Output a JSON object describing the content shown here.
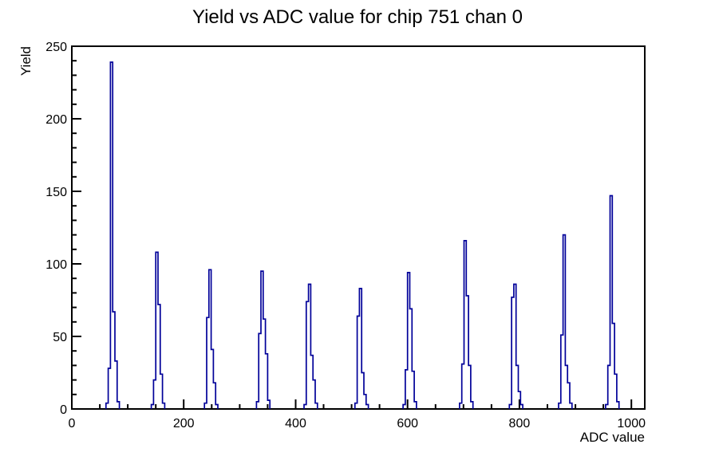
{
  "colors": {
    "background": "#ffffff",
    "axis": "#000000",
    "text": "#000000",
    "histogram_line": "#000099"
  },
  "chart_data": {
    "type": "bar",
    "subtype": "histogram-spikes",
    "title": "Yield vs ADC value for chip 751 chan 0",
    "xlabel": "ADC value",
    "ylabel": "Yield",
    "xlim": [
      0,
      1024
    ],
    "ylim": [
      0,
      250
    ],
    "grid": false,
    "legend": false,
    "x_major_step": 200,
    "x_minor_step": 50,
    "y_major_step": 50,
    "y_minor_step": 10,
    "x_tick_values": [
      0,
      200,
      400,
      600,
      800,
      1000
    ],
    "x_tick_labels": [
      "0",
      "200",
      "400",
      "600",
      "800",
      "1000"
    ],
    "y_tick_values": [
      0,
      50,
      100,
      150,
      200,
      250
    ],
    "y_tick_labels": [
      "0",
      "50",
      "100",
      "150",
      "200",
      "250"
    ],
    "bin_width": 4,
    "line_color": "#000099",
    "peak_centers_adc": [
      71,
      152,
      247,
      340,
      425,
      516,
      602,
      703,
      792,
      880,
      964
    ],
    "peak_heights": [
      239,
      108,
      96,
      95,
      86,
      83,
      94,
      116,
      86,
      120,
      147
    ],
    "peaks": [
      {
        "center": 71,
        "peak_height": 239,
        "bins": [
          [
            63,
            4
          ],
          [
            67,
            28
          ],
          [
            71,
            239
          ],
          [
            75,
            67
          ],
          [
            79,
            33
          ],
          [
            83,
            5
          ]
        ]
      },
      {
        "center": 152,
        "peak_height": 108,
        "bins": [
          [
            144,
            3
          ],
          [
            148,
            20
          ],
          [
            152,
            108
          ],
          [
            156,
            72
          ],
          [
            160,
            24
          ],
          [
            164,
            4
          ]
        ]
      },
      {
        "center": 247,
        "peak_height": 96,
        "bins": [
          [
            239,
            4
          ],
          [
            243,
            63
          ],
          [
            247,
            96
          ],
          [
            251,
            41
          ],
          [
            255,
            18
          ],
          [
            259,
            3
          ]
        ]
      },
      {
        "center": 340,
        "peak_height": 95,
        "bins": [
          [
            332,
            5
          ],
          [
            336,
            52
          ],
          [
            340,
            95
          ],
          [
            344,
            62
          ],
          [
            348,
            38
          ],
          [
            352,
            6
          ]
        ]
      },
      {
        "center": 425,
        "peak_height": 86,
        "bins": [
          [
            417,
            3
          ],
          [
            421,
            74
          ],
          [
            425,
            86
          ],
          [
            429,
            37
          ],
          [
            433,
            20
          ],
          [
            437,
            4
          ]
        ]
      },
      {
        "center": 516,
        "peak_height": 83,
        "bins": [
          [
            508,
            4
          ],
          [
            512,
            64
          ],
          [
            516,
            83
          ],
          [
            520,
            25
          ],
          [
            524,
            10
          ],
          [
            528,
            3
          ]
        ]
      },
      {
        "center": 602,
        "peak_height": 94,
        "bins": [
          [
            594,
            3
          ],
          [
            598,
            27
          ],
          [
            602,
            94
          ],
          [
            606,
            69
          ],
          [
            610,
            26
          ],
          [
            614,
            5
          ]
        ]
      },
      {
        "center": 703,
        "peak_height": 116,
        "bins": [
          [
            695,
            4
          ],
          [
            699,
            31
          ],
          [
            703,
            116
          ],
          [
            707,
            78
          ],
          [
            711,
            30
          ],
          [
            715,
            5
          ]
        ]
      },
      {
        "center": 792,
        "peak_height": 86,
        "bins": [
          [
            784,
            3
          ],
          [
            788,
            77
          ],
          [
            792,
            86
          ],
          [
            796,
            30
          ],
          [
            800,
            12
          ],
          [
            804,
            3
          ]
        ]
      },
      {
        "center": 880,
        "peak_height": 120,
        "bins": [
          [
            872,
            4
          ],
          [
            876,
            51
          ],
          [
            880,
            120
          ],
          [
            884,
            30
          ],
          [
            888,
            18
          ],
          [
            892,
            4
          ]
        ]
      },
      {
        "center": 964,
        "peak_height": 147,
        "bins": [
          [
            956,
            3
          ],
          [
            960,
            30
          ],
          [
            964,
            147
          ],
          [
            968,
            59
          ],
          [
            972,
            24
          ],
          [
            976,
            5
          ]
        ]
      }
    ]
  }
}
